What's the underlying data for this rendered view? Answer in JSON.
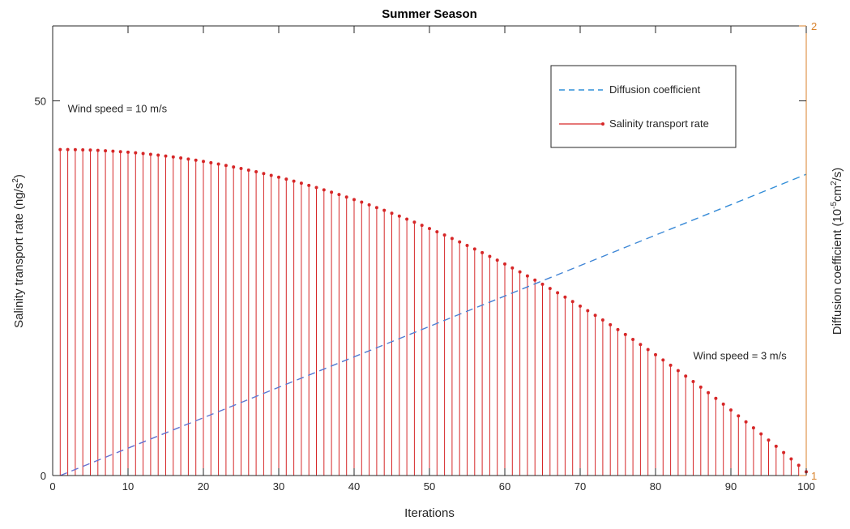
{
  "chart_data": {
    "type": "line",
    "title": "Summer Season",
    "xlabel": "Iterations",
    "ylabel_left": [
      "Salinity transport rate (ng/s",
      "2",
      ")"
    ],
    "ylabel_right": [
      "Diffusion coefficient (10",
      "-5",
      "cm",
      "2",
      "/s)"
    ],
    "xlim": [
      0,
      100
    ],
    "ylim_left": [
      0,
      60
    ],
    "ylim_right": [
      1,
      2
    ],
    "x_ticks": [
      0,
      10,
      20,
      30,
      40,
      50,
      60,
      70,
      80,
      90,
      100
    ],
    "y_ticks_left": [
      0,
      50
    ],
    "y_ticks_right": [
      1,
      2
    ],
    "grid": false,
    "legend_position": "top-right",
    "colors": {
      "salinity": "#d62728",
      "diffusion_start": "#6a6fd0",
      "diffusion_end": "#2f8fd8",
      "right_axis": "#d9822b",
      "axis": "#262626"
    },
    "series": [
      {
        "name": "Diffusion coefficient",
        "style": "dashed-line",
        "axis": "right",
        "x": [
          1,
          100
        ],
        "y": [
          1.0,
          1.67
        ]
      },
      {
        "name": "Salinity transport rate",
        "style": "stem",
        "axis": "left",
        "x_start": 1,
        "x_end": 100,
        "y_first": 43.5,
        "y_last": 0.5,
        "curve_exponent": 2
      }
    ],
    "annotations": [
      {
        "text": "Wind speed = 10 m/s",
        "x": 2,
        "y": 48.5,
        "axis": "left"
      },
      {
        "text": "Wind speed = 3 m/s",
        "x": 85,
        "y": 15.5,
        "axis": "left"
      }
    ]
  }
}
